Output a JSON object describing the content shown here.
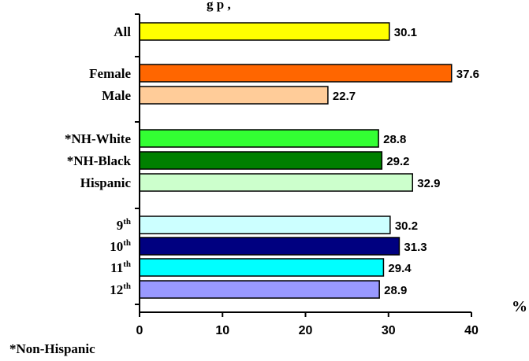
{
  "chart_data": {
    "type": "bar",
    "orientation": "horizontal",
    "title_fragment": "g p               ,",
    "categories": [
      {
        "label": "All",
        "sup": "",
        "value": 30.1,
        "color": "#FFFF00"
      },
      {
        "label": "Female",
        "sup": "",
        "value": 37.6,
        "color": "#FF6600"
      },
      {
        "label": "Male",
        "sup": "",
        "value": 22.7,
        "color": "#FFCC99"
      },
      {
        "label": "*NH-White",
        "sup": "",
        "value": 28.8,
        "color": "#33FF33"
      },
      {
        "label": "*NH-Black",
        "sup": "",
        "value": 29.2,
        "color": "#008000"
      },
      {
        "label": "Hispanic",
        "sup": "",
        "value": 32.9,
        "color": "#CCFFCC"
      },
      {
        "label": "9",
        "sup": "th",
        "value": 30.2,
        "color": "#CCFFFF"
      },
      {
        "label": "10",
        "sup": "th",
        "value": 31.3,
        "color": "#000080"
      },
      {
        "label": "11",
        "sup": "th",
        "value": 29.4,
        "color": "#00FFFF"
      },
      {
        "label": "12",
        "sup": "th",
        "value": 28.9,
        "color": "#9999FF"
      }
    ],
    "x_ticks": [
      "0",
      "10",
      "20",
      "30",
      "40"
    ],
    "xlim": [
      0,
      40
    ],
    "unit_label": "%",
    "footnote": "*Non-Hispanic",
    "grid": false,
    "legend": "none"
  }
}
